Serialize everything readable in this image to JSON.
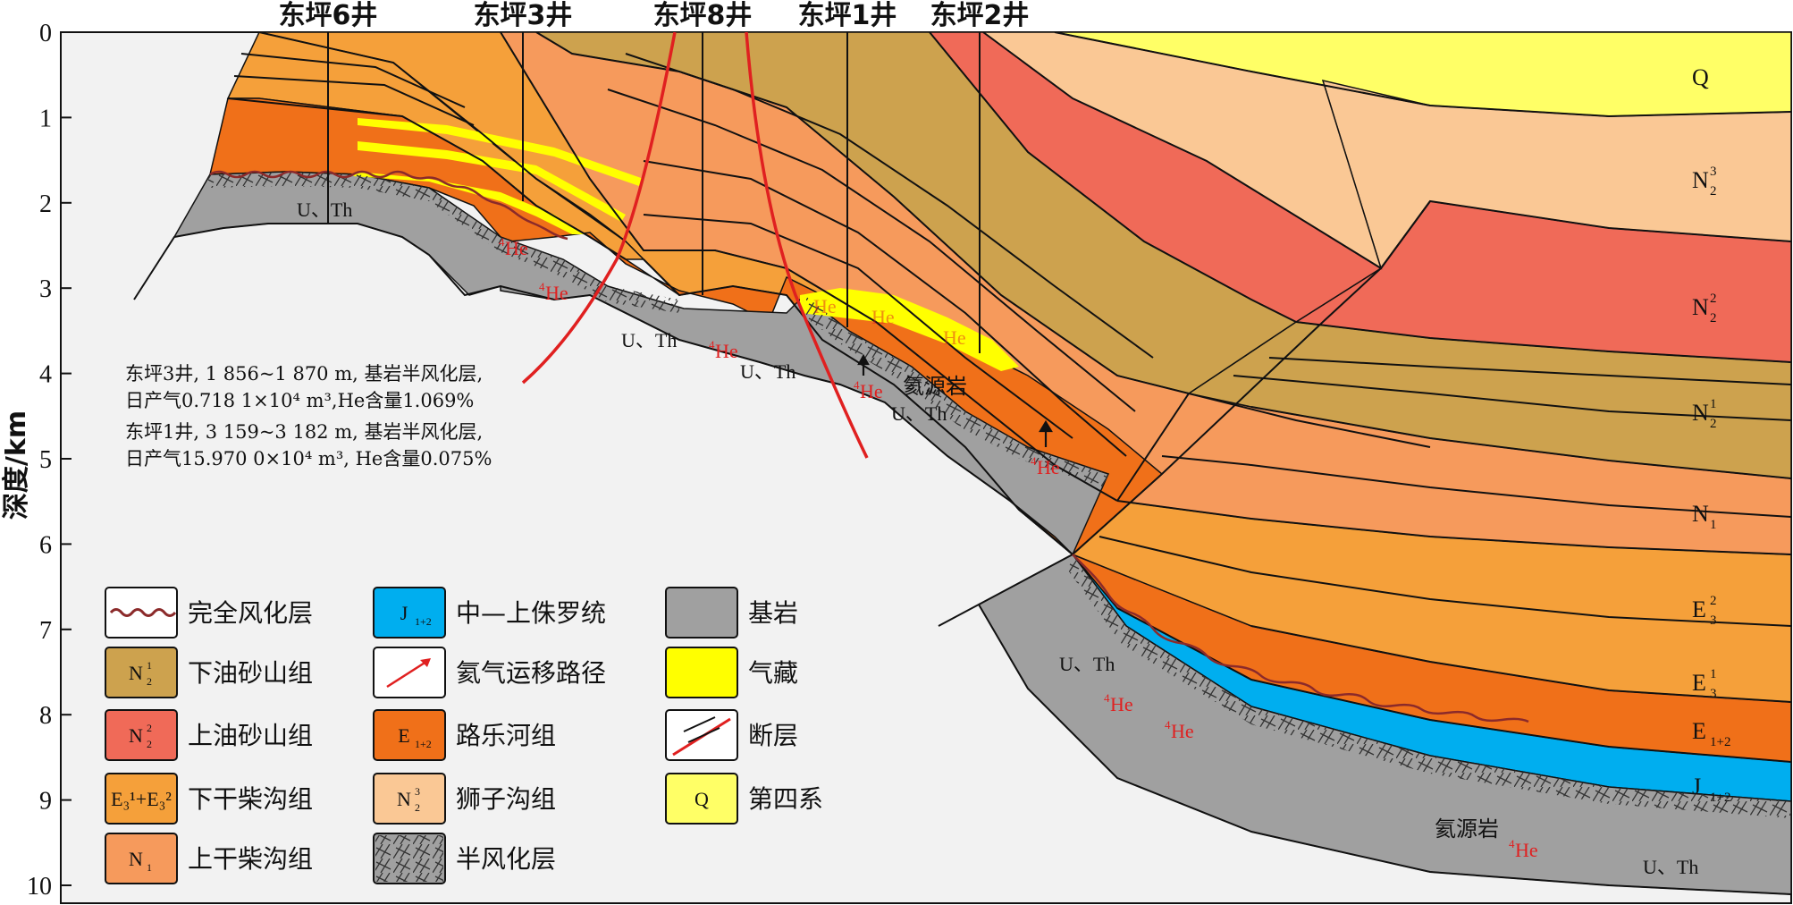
{
  "wells": [
    "东坪6井",
    "东坪3井",
    "东坪8井",
    "东坪1井",
    "东坪2井"
  ],
  "y_axis": {
    "label": "深度/km",
    "ticks": [
      "0",
      "1",
      "2",
      "3",
      "4",
      "5",
      "6",
      "7",
      "8",
      "9",
      "10"
    ]
  },
  "strata_labels": [
    {
      "main": "Q",
      "sup": "",
      "sub": ""
    },
    {
      "main": "N",
      "sup": "3",
      "sub": "2"
    },
    {
      "main": "N",
      "sup": "2",
      "sub": "2"
    },
    {
      "main": "N",
      "sup": "1",
      "sub": "2"
    },
    {
      "main": "N",
      "sup": "",
      "sub": "1"
    },
    {
      "main": "E",
      "sup": "2",
      "sub": "3"
    },
    {
      "main": "E",
      "sup": "1",
      "sub": "3"
    },
    {
      "main": "E",
      "sup": "",
      "sub": "1+2"
    },
    {
      "main": "J",
      "sup": "",
      "sub": "1+2"
    }
  ],
  "rock_labels": {
    "uth": "U、Th",
    "he_mass": "4",
    "he": "He",
    "helium_source": "氦源岩"
  },
  "annotations": [
    "东坪3井, 1 856~1 870 m, 基岩半风化层,",
    "日产气0.718 1×10⁴ m³,He含量1.069%",
    "东坪1井, 3 159~3 182 m, 基岩半风化层,",
    "日产气15.970 0×10⁴ m³, He含量0.075%"
  ],
  "legend": [
    {
      "code": "",
      "code_sup": "",
      "code_sub": "",
      "label": "完全风化层",
      "color": "#ffffff",
      "swatch": "wavy"
    },
    {
      "code": "N",
      "code_sup": "1",
      "code_sub": "2",
      "label": "下油砂山组",
      "color": "#cda24e",
      "swatch": "fill"
    },
    {
      "code": "N",
      "code_sup": "2",
      "code_sub": "2",
      "label": "上油砂山组",
      "color": "#f06a58",
      "swatch": "fill"
    },
    {
      "code": "E₃¹+E₃²",
      "code_sup": "",
      "code_sub": "",
      "label": "下干柴沟组",
      "color": "#f5a03a",
      "swatch": "fill"
    },
    {
      "code": "N",
      "code_sup": "",
      "code_sub": "1",
      "label": "上干柴沟组",
      "color": "#f69a5c",
      "swatch": "fill"
    },
    {
      "code": "J",
      "code_sup": "",
      "code_sub": "1+2",
      "label": "中—上侏罗统",
      "color": "#00aeef",
      "swatch": "fill"
    },
    {
      "code": "",
      "code_sup": "",
      "code_sub": "",
      "label": "氦气运移路径",
      "color": "#ffffff",
      "swatch": "arrow"
    },
    {
      "code": "E",
      "code_sup": "",
      "code_sub": "1+2",
      "label": "路乐河组",
      "color": "#f07019",
      "swatch": "fill"
    },
    {
      "code": "N",
      "code_sup": "3",
      "code_sub": "2",
      "label": "狮子沟组",
      "color": "#fac895",
      "swatch": "fill"
    },
    {
      "code": "",
      "code_sup": "",
      "code_sub": "",
      "label": "半风化层",
      "color": "#a0a0a0",
      "swatch": "hatch"
    },
    {
      "code": "",
      "code_sup": "",
      "code_sub": "",
      "label": "基岩",
      "color": "#a0a0a0",
      "swatch": "fill"
    },
    {
      "code": "",
      "code_sup": "",
      "code_sub": "",
      "label": "气藏",
      "color": "#ffff00",
      "swatch": "fill"
    },
    {
      "code": "",
      "code_sup": "",
      "code_sub": "",
      "label": "断层",
      "color": "#ffffff",
      "swatch": "fault"
    },
    {
      "code": "Q",
      "code_sup": "",
      "code_sub": "",
      "label": "第四系",
      "color": "#ffff66",
      "swatch": "fill"
    }
  ],
  "colors": {
    "background": "#f2f2f2",
    "basement": "#a0a0a0",
    "gas": "#ffff00",
    "Q": "#ffff66",
    "N2_3": "#fac895",
    "N2_2": "#f06a58",
    "N2_1": "#cda24e",
    "N1": "#f69a5c",
    "E3": "#f5a03a",
    "E12": "#f07019",
    "J": "#00aeef",
    "fault": "#e02020",
    "he_text": "#e02020"
  }
}
